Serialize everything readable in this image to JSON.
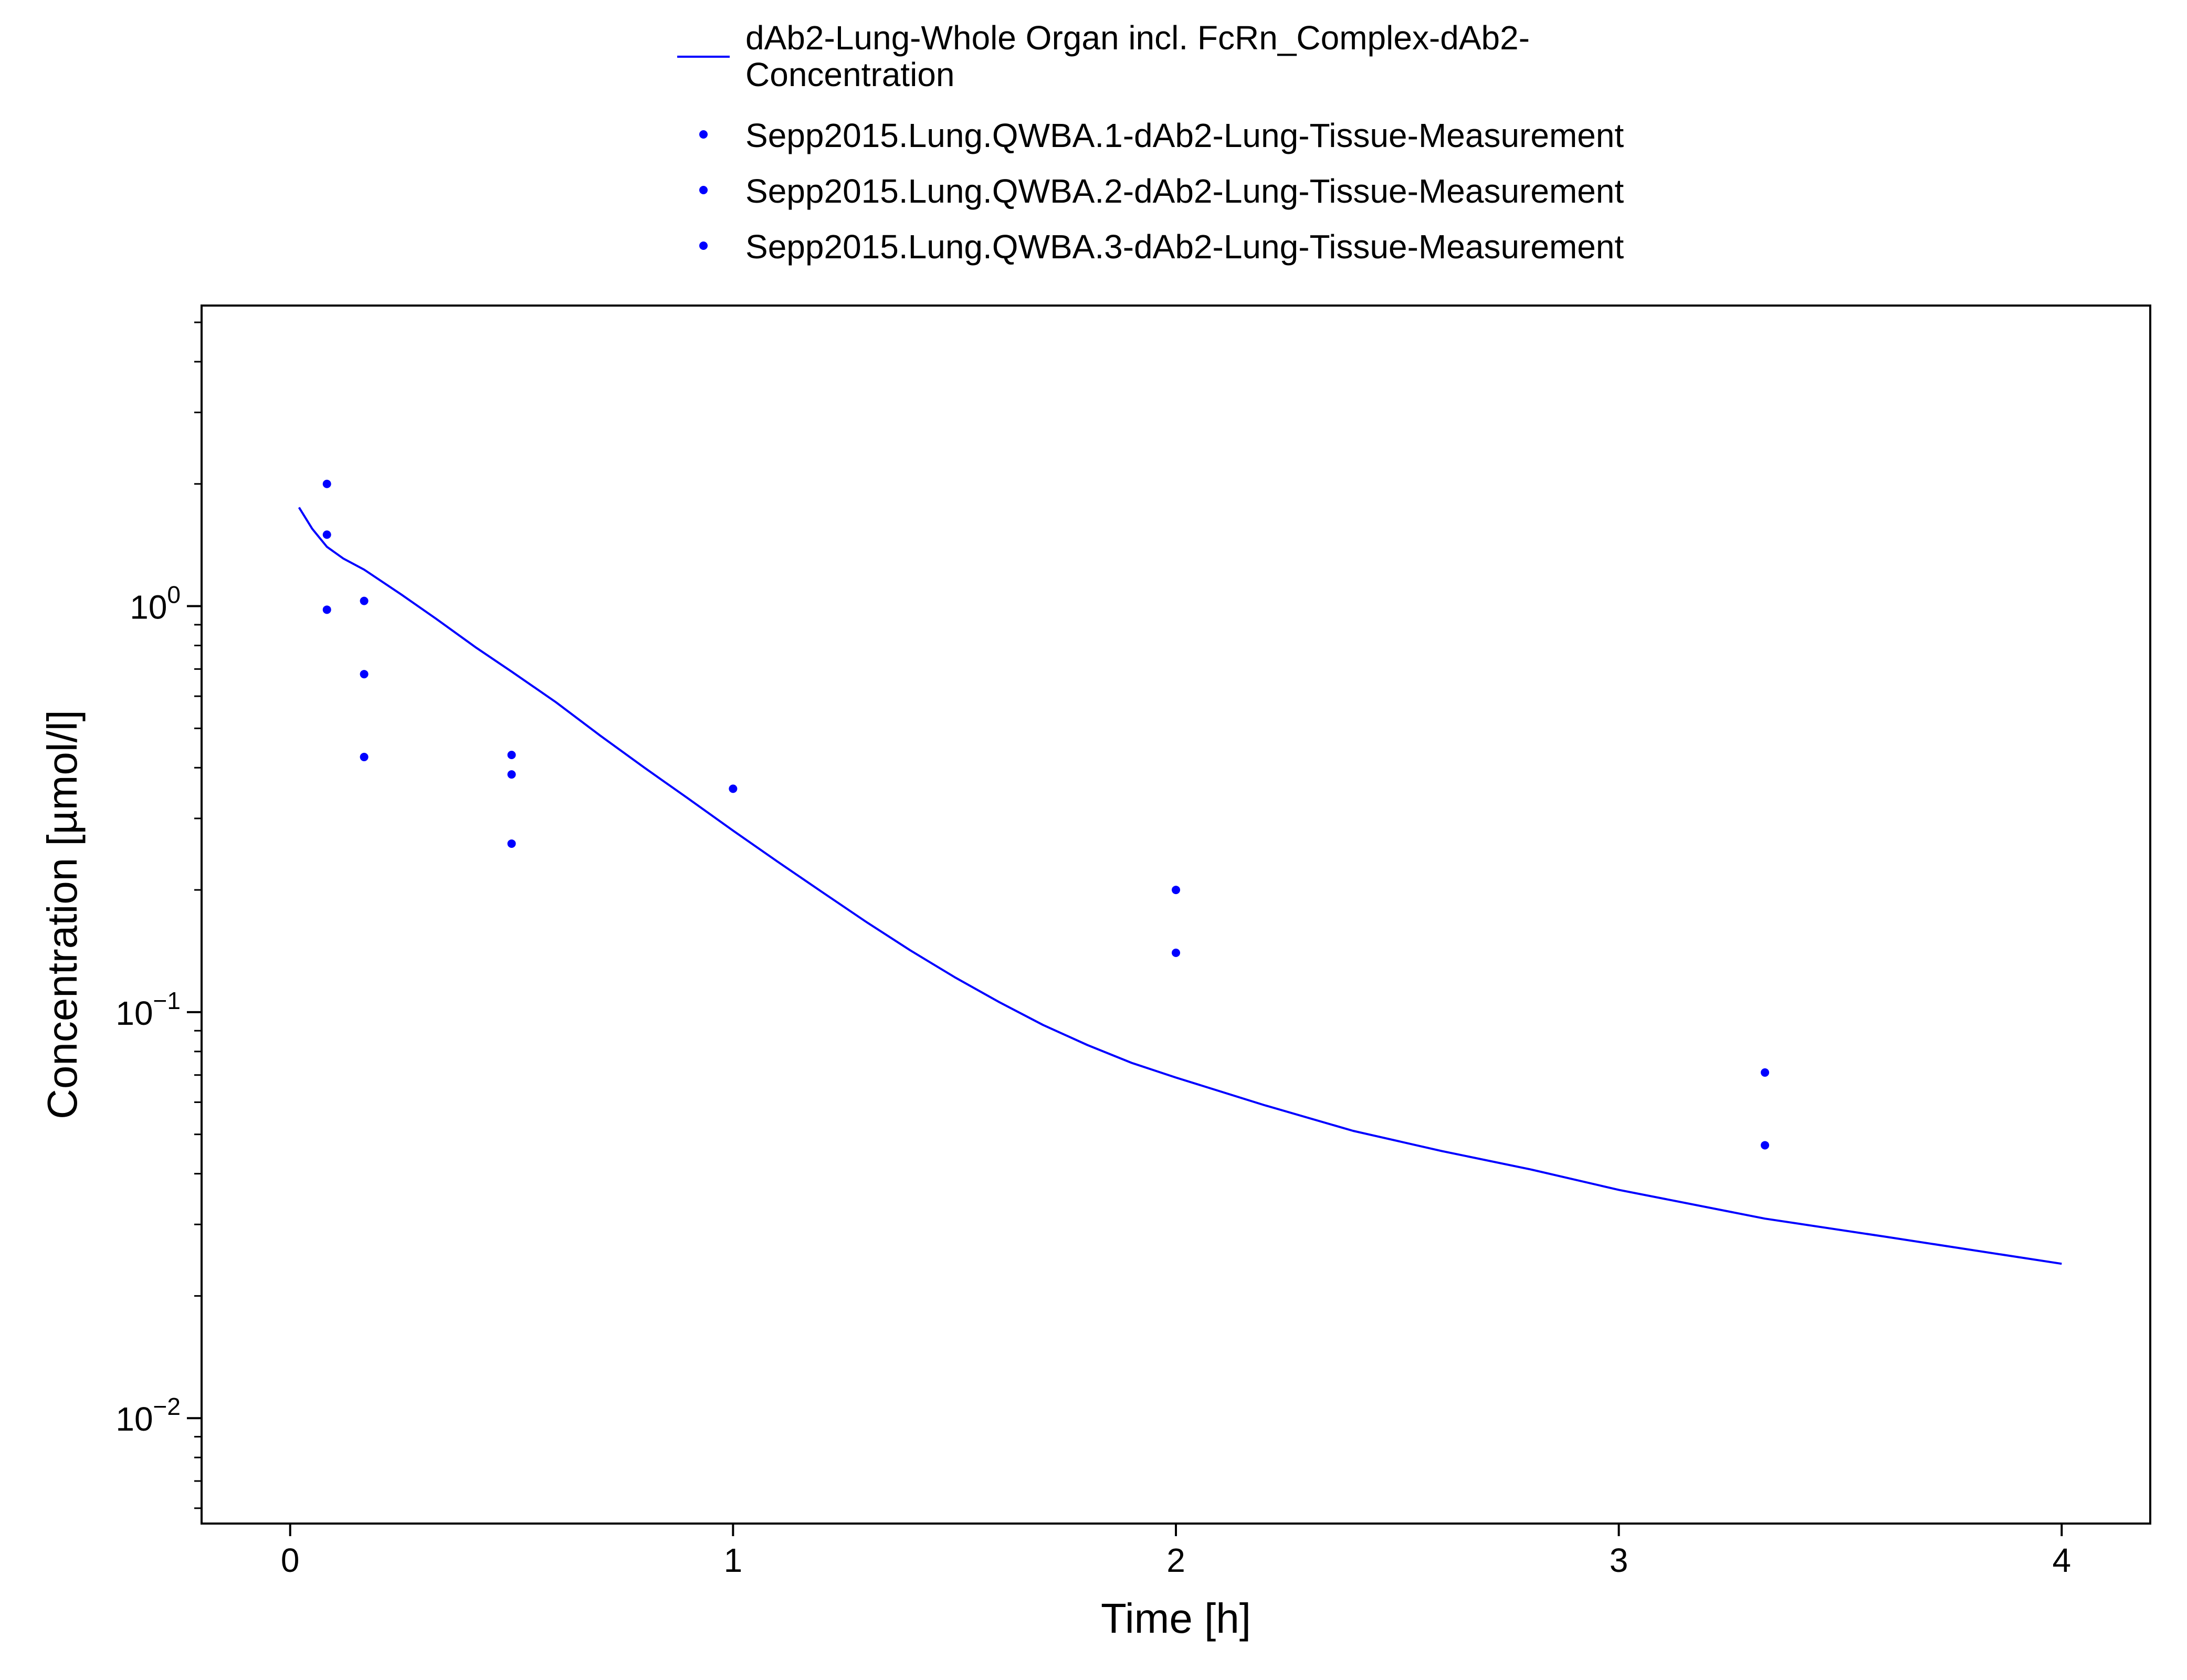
{
  "chart_data": {
    "type": "line",
    "title": "",
    "xlabel": "Time [h]",
    "ylabel": "Concentration [µmol/l]",
    "xlim": [
      -0.2,
      4.2
    ],
    "ylim": [
      0.0055,
      5.5
    ],
    "yscale": "log",
    "x_ticks": [
      0,
      1,
      2,
      3,
      4
    ],
    "x_tick_labels": [
      "0",
      "1",
      "2",
      "3",
      "4"
    ],
    "y_ticks": [
      1,
      0.1,
      0.01
    ],
    "y_tick_labels": [
      {
        "base": "10",
        "exp": "0"
      },
      {
        "base": "10",
        "exp": "−1"
      },
      {
        "base": "10",
        "exp": "−2"
      }
    ],
    "grid": false,
    "legend_position": "top-center",
    "color": "#0000ff",
    "series": [
      {
        "name": "dAb2-Lung-Whole Organ incl. FcRn_Complex-dAb2-Concentration",
        "legend_lines": [
          "dAb2-Lung-Whole Organ incl. FcRn_Complex-dAb2-",
          "Concentration"
        ],
        "kind": "line",
        "x": [
          0.02,
          0.05,
          0.083,
          0.12,
          0.167,
          0.25,
          0.33,
          0.42,
          0.5,
          0.6,
          0.7,
          0.8,
          0.9,
          1.0,
          1.1,
          1.2,
          1.3,
          1.4,
          1.5,
          1.6,
          1.7,
          1.8,
          1.9,
          2.0,
          2.2,
          2.4,
          2.6,
          2.8,
          3.0,
          3.33,
          3.6,
          4.0
        ],
        "y": [
          1.75,
          1.55,
          1.4,
          1.31,
          1.23,
          1.07,
          0.93,
          0.79,
          0.69,
          0.58,
          0.48,
          0.4,
          0.335,
          0.28,
          0.235,
          0.198,
          0.167,
          0.142,
          0.122,
          0.106,
          0.093,
          0.083,
          0.075,
          0.069,
          0.059,
          0.051,
          0.0455,
          0.041,
          0.0365,
          0.031,
          0.028,
          0.024
        ]
      },
      {
        "name": "Sepp2015.Lung.QWBA.1-dAb2-Lung-Tissue-Measurement",
        "kind": "scatter",
        "x": [
          0.083,
          0.167,
          0.5,
          1.0,
          2.0,
          3.33
        ],
        "y": [
          2.0,
          1.03,
          0.43,
          0.355,
          0.2,
          0.071
        ]
      },
      {
        "name": "Sepp2015.Lung.QWBA.2-dAb2-Lung-Tissue-Measurement",
        "kind": "scatter",
        "x": [
          0.083,
          0.167,
          0.5,
          2.0,
          3.33
        ],
        "y": [
          1.5,
          0.68,
          0.385,
          0.14,
          0.047
        ]
      },
      {
        "name": "Sepp2015.Lung.QWBA.3-dAb2-Lung-Tissue-Measurement",
        "kind": "scatter",
        "x": [
          0.083,
          0.167,
          0.5
        ],
        "y": [
          0.98,
          0.425,
          0.26
        ]
      }
    ]
  }
}
